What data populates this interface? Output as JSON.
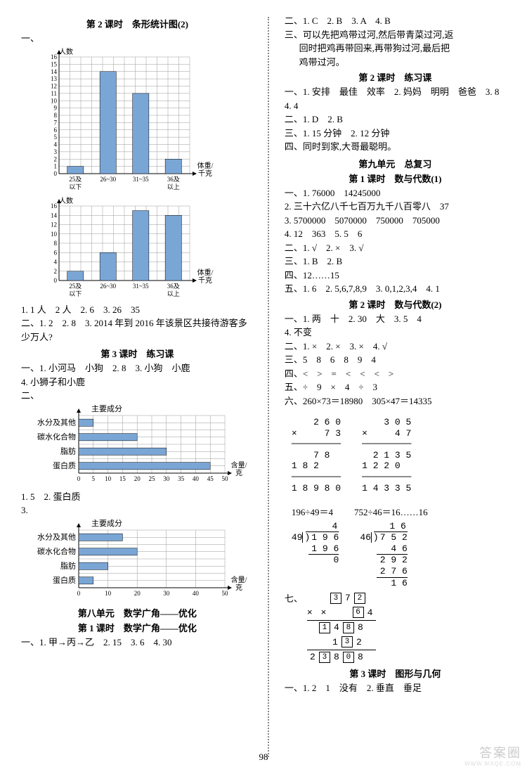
{
  "page_number": "98",
  "watermark": "答案圈",
  "watermark_sub": "WWW.MXQE.COM",
  "left": {
    "lesson2_title": "第 2 课时　条形统计图(2)",
    "chart_label_y": "人数",
    "chart_label_x": "体重/\n千克",
    "chart1": {
      "yticks": [
        16,
        15,
        14,
        13,
        12,
        11,
        10,
        9,
        8,
        7,
        6,
        5,
        4,
        3,
        2,
        1,
        0
      ],
      "categories": [
        "25及\n以下",
        "26~30",
        "31~35",
        "36及\n以上"
      ],
      "values": [
        1,
        14,
        11,
        2
      ],
      "bar_color": "#7aa6d6",
      "grid_color": "#999"
    },
    "chart2": {
      "yticks": [
        16,
        14,
        12,
        10,
        8,
        6,
        4,
        2,
        0
      ],
      "categories": [
        "25及\n以下",
        "26~30",
        "31~35",
        "36及\n以上"
      ],
      "values": [
        2,
        6,
        15,
        14
      ],
      "bar_color": "#7aa6d6",
      "grid_color": "#999"
    },
    "q1": "1. 1 人　2 人　2. 6　3. 26　35",
    "q2": "二、1. 2　2. 8　3. 2014 年到 2016 年该景区共接待游客多少万人?",
    "lesson3_title": "第 3 课时　练习课",
    "q3a": "一、1. 小河马　小狗　2. 8　3. 小狗　小鹿",
    "q3b": "4. 小狮子和小鹿",
    "q3_2": "二、",
    "hchart_title": "主要成分",
    "hchart_xlabel": "含量/\n克",
    "hchart": {
      "categories": [
        "水分及其他",
        "碳水化合物",
        "脂肪",
        "蛋白质"
      ],
      "xticks": [
        0,
        5,
        10,
        15,
        20,
        25,
        30,
        35,
        40,
        45,
        50
      ],
      "values": [
        5,
        20,
        30,
        45
      ],
      "bar_color": "#7aa6d6",
      "grid_color": "#999"
    },
    "h_a": "1. 5　2. 蛋白质",
    "h_b": "3.",
    "hchart2": {
      "categories": [
        "水分及其他",
        "碳水化合物",
        "脂肪",
        "蛋白质"
      ],
      "xticks": [
        0,
        10,
        20,
        30,
        40,
        50
      ],
      "values": [
        15,
        20,
        10,
        5
      ],
      "bar_color": "#7aa6d6",
      "grid_color": "#999"
    },
    "unit8_title": "第八单元　数学广角——优化",
    "unit8_l1": "第 1 课时　数学广角——优化",
    "unit8_a": "一、1. 甲→丙→乙　2. 15　3. 6　4. 30"
  },
  "right": {
    "r1": "二、1. C　2. B　3. A　4. B",
    "r2a": "三、可以先把鸡带过河,然后带青菜过河,返",
    "r2b": "回时把鸡再带回来,再带狗过河,最后把",
    "r2c": "鸡带过河。",
    "lesson2p": "第 2 课时　练习课",
    "r3": "一、1. 安排　最佳　效率　2. 妈妈　明明　爸爸　3. 8　4. 4",
    "r4": "二、1. D　2. B",
    "r5": "三、1. 15 分钟　2. 12 分钟",
    "r6": "四、同时到家,大哥最聪明。",
    "unit9_title": "第九单元　总复习",
    "unit9_l1": "第 1 课时　数与代数(1)",
    "r7a": "一、1. 76000　14245000",
    "r7b": "2. 三十六亿八千七百万九千八百零八　37",
    "r7c": "3. 5700000　5070000　750000　705000",
    "r7d": "4. 12　363　5. 5　6",
    "r8": "二、1. √　2. ×　3. √",
    "r9": "三、1. B　2. B",
    "r10": "四、12……15",
    "r11": "五、1. 6　2. 5,6,7,8,9　3. 0,1,2,3,4　4. 1",
    "unit9_l2": "第 2 课时　数与代数(2)",
    "r12": "一、1. 两　十　2. 30　大　3. 5　4",
    "r12b": "4. 不变",
    "r13": "二、1. ×　2. ×　3. ×　4. √",
    "r14": "三、5　8　6　8　9　4",
    "r15": "四、<　>　=　<　<　<　>",
    "r16": "五、÷　9　×　4　÷　3",
    "r17": "六、260×73＝18980　305×47＝14335",
    "calc_mul1": "    2 6 0\n×     7 3\n─────────\n    7 8\n1 8 2\n─────────\n1 8 9 8 0",
    "calc_mul2": "    3 0 5\n×     4 7\n─────────\n  2 1 3 5\n1 2 2 0\n─────────\n1 4 3 3 5",
    "calc_div_a": "196÷49＝4",
    "calc_div_b": "752÷46＝16……16",
    "r_qi": "七、",
    "puzzle_rows": [
      [
        "",
        "",
        "3",
        "7",
        "2"
      ],
      [
        "×",
        "",
        "",
        "6",
        "4"
      ],
      [
        "",
        "1",
        "4",
        "8",
        "8"
      ],
      [
        "",
        "",
        "1",
        "3",
        "2"
      ],
      [
        "2",
        "3",
        "8",
        "0",
        "8"
      ]
    ],
    "puzzle_boxes": [
      [
        false,
        false,
        true,
        false,
        true
      ],
      [
        false,
        false,
        false,
        true,
        false
      ],
      [
        false,
        true,
        false,
        true,
        false
      ],
      [
        false,
        false,
        false,
        true,
        false
      ],
      [
        false,
        true,
        false,
        true,
        false
      ]
    ],
    "unit9_l3": "第 3 课时　图形与几何",
    "r18": "一、1. 2　1　没有　2. 垂直　垂足"
  }
}
